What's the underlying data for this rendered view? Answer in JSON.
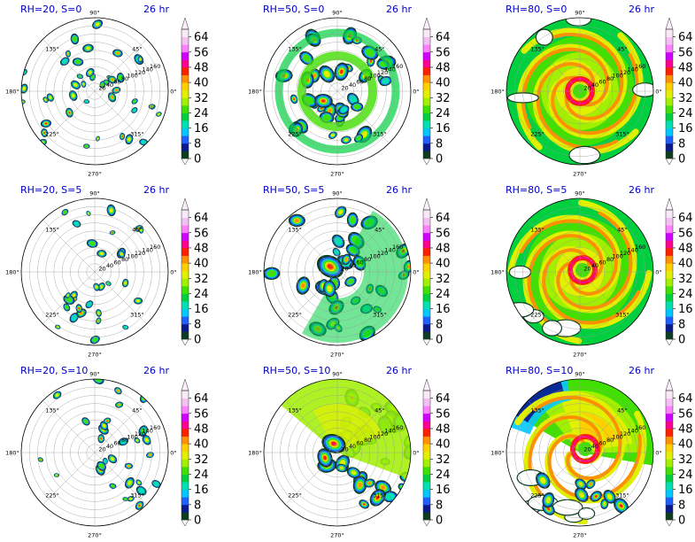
{
  "figure": {
    "colorbar_levels": [
      0,
      4,
      8,
      12,
      16,
      20,
      24,
      28,
      32,
      36,
      40,
      44,
      48,
      52,
      56,
      60,
      64,
      68
    ],
    "colorbar_tick_labels": [
      "0",
      "8",
      "16",
      "24",
      "32",
      "40",
      "48",
      "56",
      "64"
    ],
    "colorbar_colors": [
      "#ffffff",
      "#0b3d1e",
      "#0a1a8c",
      "#1f5eff",
      "#00c8ff",
      "#00e0b0",
      "#00d040",
      "#40e000",
      "#a0f000",
      "#e0f000",
      "#ffd000",
      "#ff9000",
      "#ff2000",
      "#ff0090",
      "#d000ff",
      "#ff80ff",
      "#f4c0f4",
      "#f8e8f8"
    ],
    "azimuth_labels": [
      "0°",
      "45°",
      "90°",
      "135°",
      "180°",
      "225°",
      "270°",
      "315°"
    ],
    "radius_labels": [
      "20",
      "40",
      "60",
      "80",
      "100",
      "120",
      "140",
      "160"
    ]
  },
  "chart_data": [
    {
      "type": "heatmap",
      "projection": "polar",
      "title": "RH=20, S=0",
      "time_label": "26 hr",
      "rh": 20,
      "shear": 0,
      "radius_range": [
        0,
        180
      ],
      "color_range": [
        0,
        68
      ],
      "organization": "scattered isolated convection"
    },
    {
      "type": "heatmap",
      "projection": "polar",
      "title": "RH=50, S=0",
      "time_label": "26 hr",
      "rh": 50,
      "shear": 0,
      "radius_range": [
        0,
        180
      ],
      "color_range": [
        0,
        68
      ],
      "organization": "convective rings with spiral bands"
    },
    {
      "type": "heatmap",
      "projection": "polar",
      "title": "RH=80, S=0",
      "time_label": "26 hr",
      "rh": 80,
      "shear": 0,
      "radius_range": [
        0,
        180
      ],
      "color_range": [
        0,
        68
      ],
      "organization": "symmetric vortex with spiral rainbands"
    },
    {
      "type": "heatmap",
      "projection": "polar",
      "title": "RH=20, S=5",
      "time_label": "26 hr",
      "rh": 20,
      "shear": 5,
      "radius_range": [
        0,
        180
      ],
      "color_range": [
        0,
        68
      ],
      "organization": "scattered cells concentrated to the east"
    },
    {
      "type": "heatmap",
      "projection": "polar",
      "title": "RH=50, S=5",
      "time_label": "26 hr",
      "rh": 50,
      "shear": 5,
      "radius_range": [
        0,
        180
      ],
      "color_range": [
        0,
        68
      ],
      "organization": "asymmetric core, convection to the south and east"
    },
    {
      "type": "heatmap",
      "projection": "polar",
      "title": "RH=80, S=5",
      "time_label": "26 hr",
      "rh": 80,
      "shear": 5,
      "radius_range": [
        0,
        180
      ],
      "color_range": [
        0,
        68
      ],
      "organization": "broad vortex with core ring and southern bands"
    },
    {
      "type": "heatmap",
      "projection": "polar",
      "title": "RH=20, S=10",
      "time_label": "26 hr",
      "rh": 20,
      "shear": 10,
      "radius_range": [
        0,
        180
      ],
      "color_range": [
        0,
        68
      ],
      "organization": "convection confined to the eastern half"
    },
    {
      "type": "heatmap",
      "projection": "polar",
      "title": "RH=50, S=10",
      "time_label": "26 hr",
      "rh": 50,
      "shear": 10,
      "radius_range": [
        0,
        180
      ],
      "color_range": [
        0,
        68
      ],
      "organization": "intense core on the west side, northeast shield"
    },
    {
      "type": "heatmap",
      "projection": "polar",
      "title": "RH=80, S=10",
      "time_label": "26 hr",
      "rh": 80,
      "shear": 10,
      "radius_range": [
        0,
        180
      ],
      "color_range": [
        0,
        68
      ],
      "organization": "large northeast shield with southwest band"
    }
  ]
}
